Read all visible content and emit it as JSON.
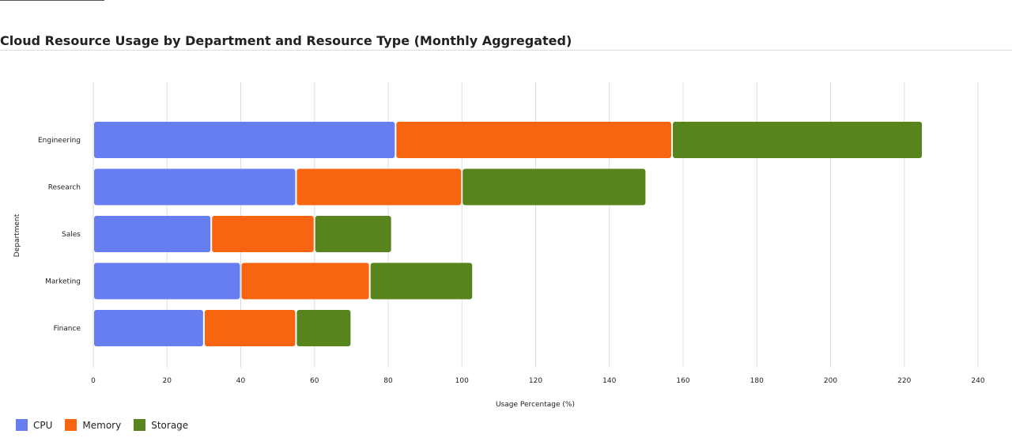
{
  "chart_data": {
    "type": "bar",
    "orientation": "horizontal",
    "stacked": true,
    "title": "Cloud Resource Usage by Department and Resource Type (Monthly Aggregated)",
    "xlabel": "Usage Percentage (%)",
    "ylabel": "Department",
    "xlim": [
      0,
      240
    ],
    "xticks": [
      0,
      20,
      40,
      60,
      80,
      100,
      120,
      140,
      160,
      180,
      200,
      220,
      240
    ],
    "categories": [
      "Engineering",
      "Research",
      "Sales",
      "Marketing",
      "Finance"
    ],
    "series": [
      {
        "name": "CPU",
        "color": "#667eef",
        "values": [
          82,
          55,
          32,
          40,
          30
        ]
      },
      {
        "name": "Memory",
        "color": "#f76511",
        "values": [
          75,
          45,
          28,
          35,
          25
        ]
      },
      {
        "name": "Storage",
        "color": "#58841e",
        "values": [
          68,
          50,
          21,
          28,
          15
        ]
      }
    ],
    "grid": "vertical",
    "legend_position": "bottom-left"
  }
}
